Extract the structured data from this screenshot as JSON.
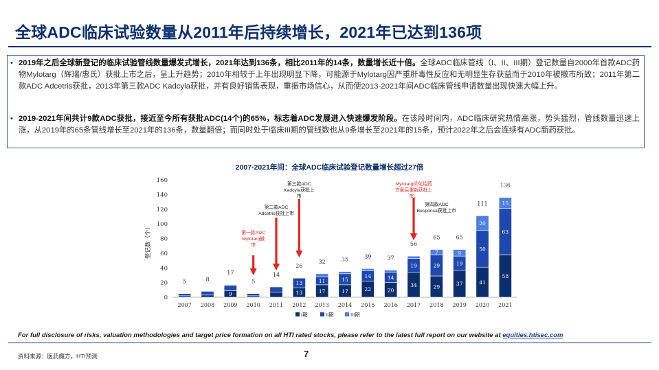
{
  "page": {
    "title": "全球ADC临床试验数量从2011年后持续增长，2021年已达到136项",
    "bullets": [
      {
        "bold": "2019年之后全球新登记的临床试验管线数量爆发式增长，2021年达到136条，相比2011年的14条，数量增长近十倍。",
        "text": "全球ADC临床管线（I、II、III期）登记数量自2000年首款ADC药物Mylotarg（辉瑞/惠氏）获批上市之后，呈上升趋势；2010年相较于上年出现明显下降，可能源于Mylotarg因严重肝毒性反应和无明显生存获益而于2010年被撤市所致；2011年第二款ADC Adcetris获批，2013年第三款ADC Kadcyla获批，并有良好销售表现，重振市场信心，从而使2013-2021年间ADC临床管线申请数量出现快速大幅上升。"
      },
      {
        "bold": "2019-2021年间共计9款ADC获批，接近至今所有获批ADC(14个)的65%，标志着ADC发展进入快速爆发阶段。",
        "text": "在该段时间内，ADC临床研究热情高涨，势头猛烈，管线数量迅速上涨，从2019年的65条管线增长至2021年的136条，数量翻倍；而同时处于临床III期的管线数也从9条增长至2021年的15条，预计2022年之后会连续有ADC新药获批。"
      }
    ],
    "disclaimer": "For full disclosure of risks, valuation methodologies and target price formation on all HTI rated stocks, please refer to the latest full report on our website at",
    "disclaimer_link": "equities.htisec.com",
    "source": "资料来源：医药魔方，HTI预测",
    "page_number": "7"
  },
  "chart_data": {
    "type": "bar",
    "stacked": true,
    "title": "2007-2021年间：全球ADC临床试验登记数量增长超过27倍",
    "ylabel": "登记数（个）",
    "ylim": [
      0,
      160
    ],
    "yticks": [
      0,
      20,
      40,
      60,
      80,
      100,
      120,
      140,
      160
    ],
    "categories": [
      "2007",
      "2008",
      "2009",
      "2010",
      "2011",
      "2012",
      "2013",
      "2014",
      "2015",
      "2016",
      "2017",
      "2018",
      "2019",
      "2020",
      "2021"
    ],
    "series": [
      {
        "name": "I期",
        "color": "#0b2f6e",
        "values": [
          2,
          3,
          9,
          2,
          7,
          13,
          17,
          17,
          22,
          20,
          34,
          29,
          37,
          41,
          58
        ]
      },
      {
        "name": "II期",
        "color": "#1f47b0",
        "values": [
          3,
          5,
          7,
          3,
          7,
          13,
          11,
          15,
          14,
          14,
          19,
          29,
          19,
          50,
          63
        ]
      },
      {
        "name": "III期",
        "color": "#4f7fe0",
        "values": [
          0,
          0,
          1,
          0,
          0,
          0,
          4,
          3,
          3,
          3,
          3,
          7,
          9,
          20,
          15
        ]
      }
    ],
    "totals": [
      5,
      8,
      17,
      5,
      14,
      26,
      32,
      35,
      39,
      37,
      56,
      65,
      65,
      111,
      136
    ],
    "segment_labels": [
      [
        "",
        "",
        "9",
        "",
        "",
        "13",
        "17",
        "17",
        "22",
        "20",
        "34",
        "29",
        "37",
        "41",
        "58"
      ],
      [
        "",
        "",
        "",
        "",
        "",
        "13",
        "11",
        "15",
        "14",
        "14",
        "19",
        "29",
        "19",
        "50",
        "63"
      ],
      [
        "",
        "",
        "",
        "",
        "",
        "",
        "",
        "",
        "",
        "",
        "",
        "7",
        "9",
        "20",
        "15"
      ]
    ],
    "annotations": [
      {
        "category": "2010",
        "lines": [
          "第一款ADC",
          "Mylotarg撤",
          "市"
        ],
        "color": "#e8231f",
        "arrow": true
      },
      {
        "category": "2011",
        "lines": [
          "第二款ADC",
          "Adcetris获批上市"
        ],
        "color": "#222222",
        "arrow": true
      },
      {
        "category": "2012",
        "lines": [
          "第三款ADC",
          "Kadcyla获批上",
          "市"
        ],
        "color": "#222222",
        "arrow": true
      },
      {
        "category": "2017",
        "lines": [
          "Mylotarg优化给药",
          "方案后重新获批上",
          "市；"
        ],
        "color": "#e8231f",
        "arrow": true
      },
      {
        "category": "2018",
        "lines": [
          "第四款ADC",
          "Besponsa获批上市"
        ],
        "color": "#222222",
        "arrow": false
      }
    ],
    "legend": {
      "position": "bottom",
      "entries": [
        "I期",
        "II期",
        "III期"
      ]
    }
  }
}
